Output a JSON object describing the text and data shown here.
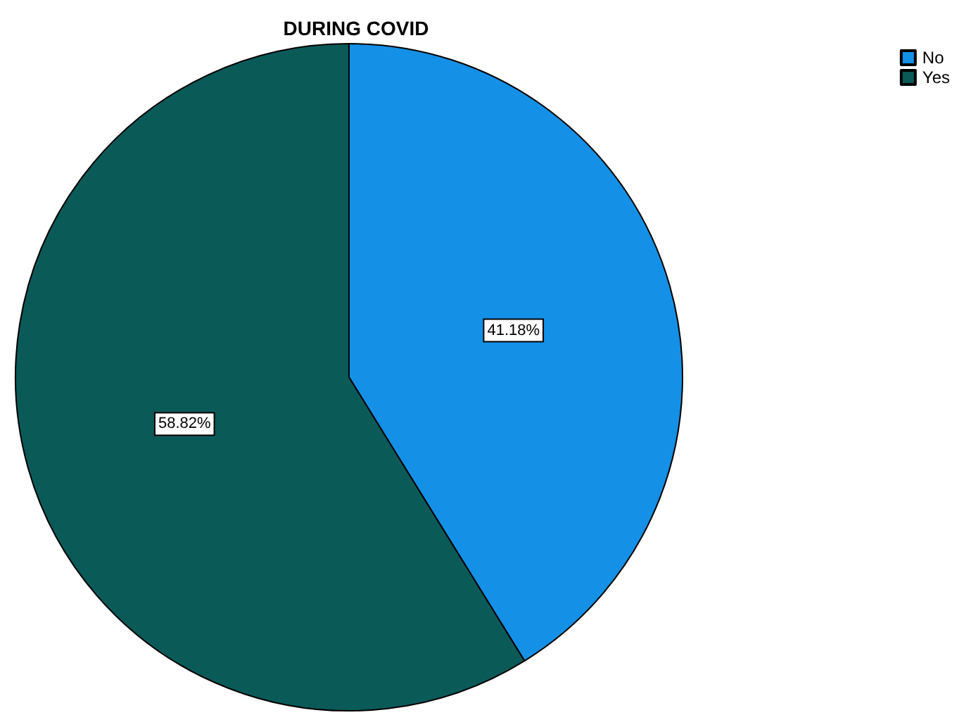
{
  "chart_data": {
    "type": "pie",
    "title": "DURING COVID",
    "categories": [
      "No",
      "Yes"
    ],
    "values": [
      41.18,
      58.82
    ],
    "colors": [
      "#1490e6",
      "#0a5a58"
    ],
    "value_labels": [
      "41.18%",
      "58.82%"
    ],
    "legend": "top right"
  }
}
